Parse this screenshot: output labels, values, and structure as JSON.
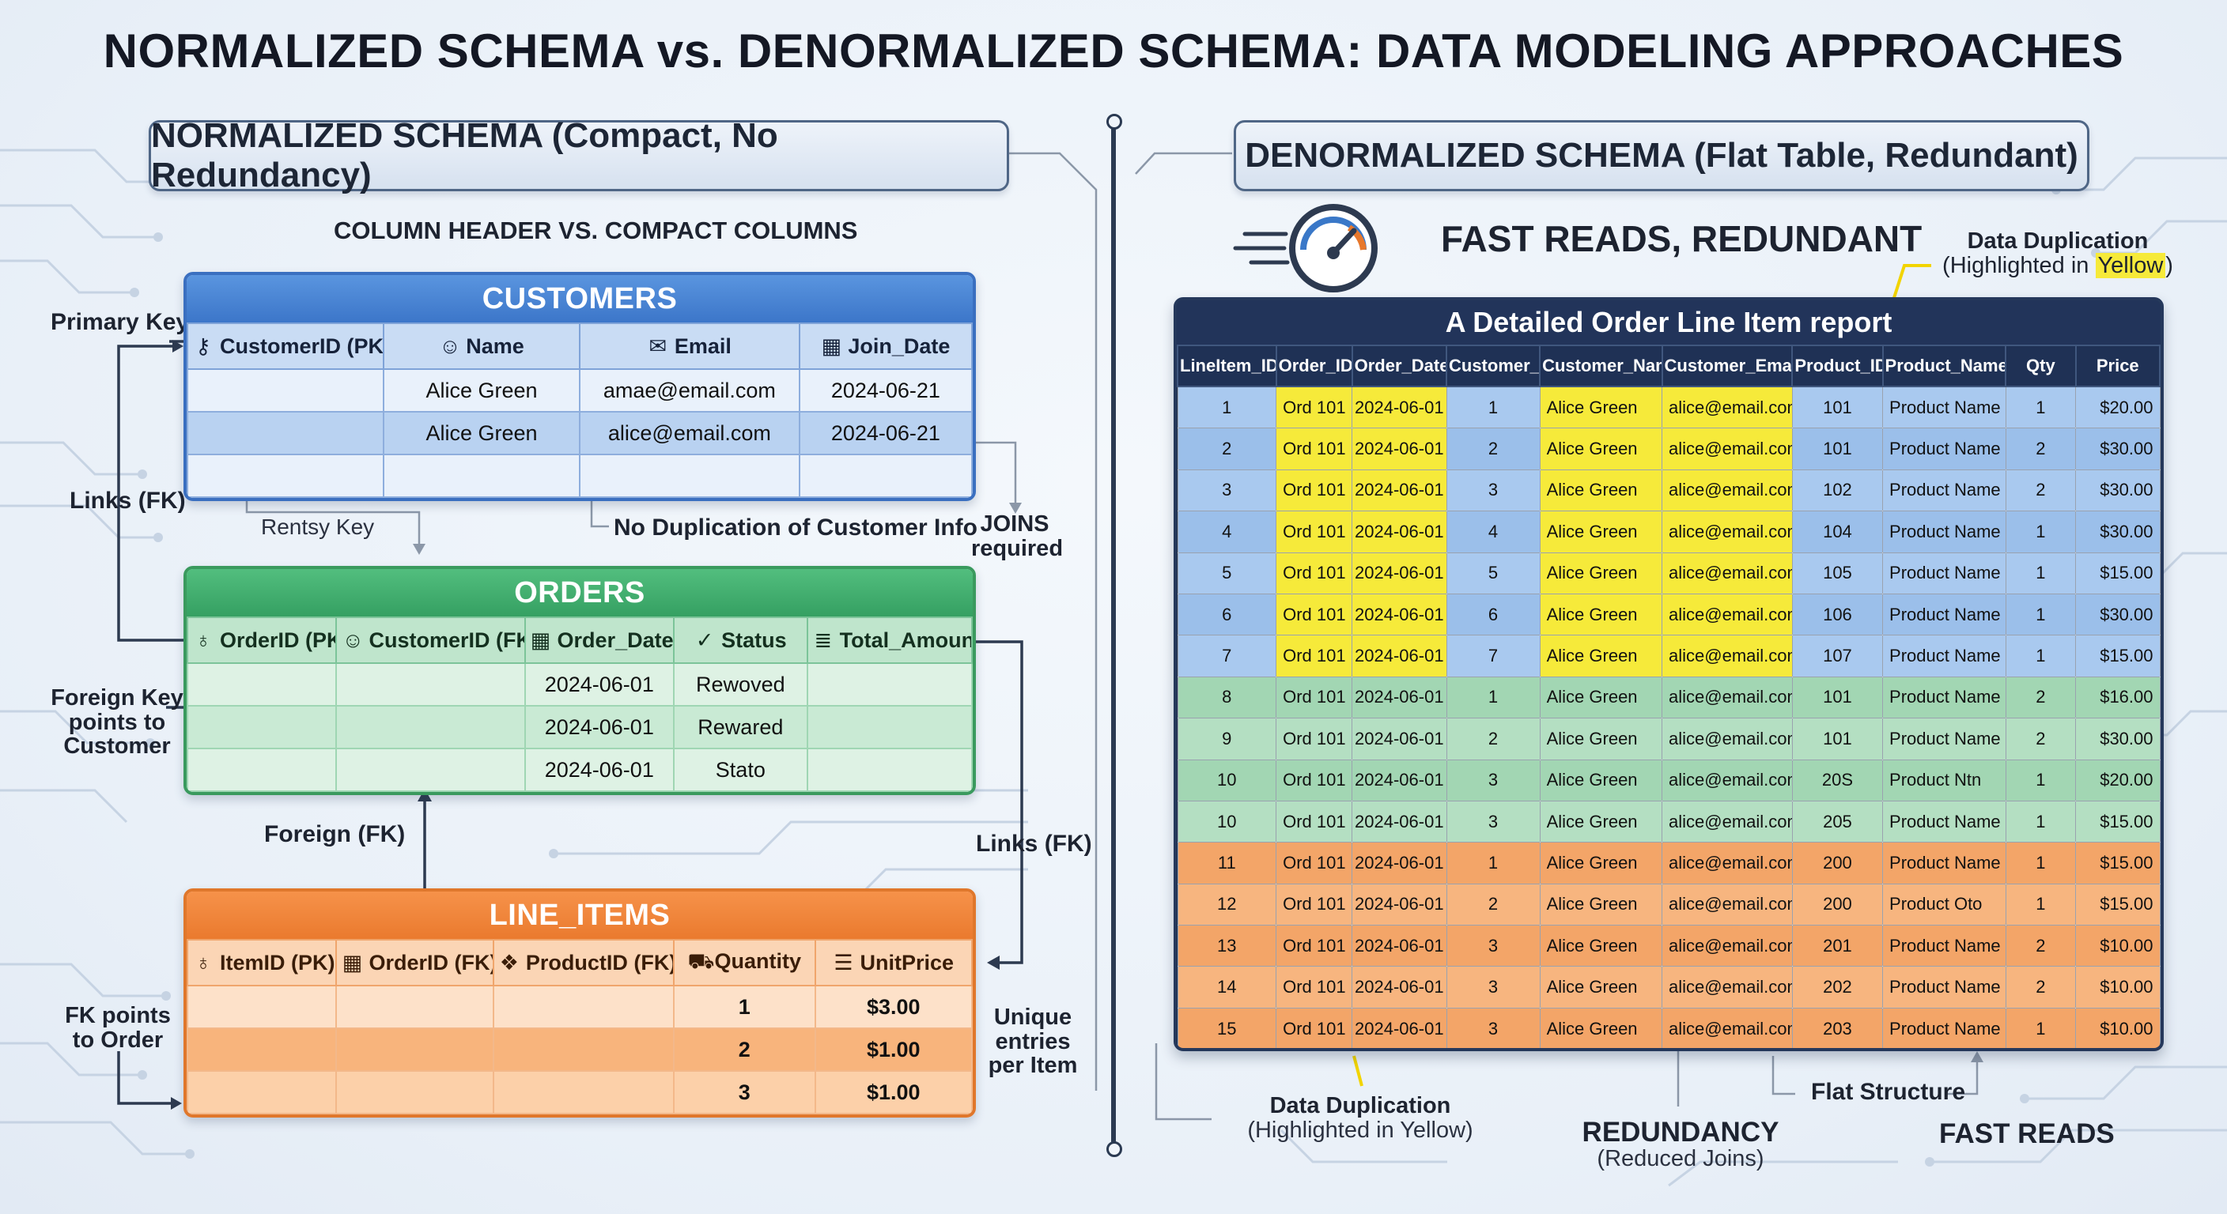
{
  "title": "NORMALIZED SCHEMA vs. DENORMALIZED SCHEMA: DATA MODELING APPROACHES",
  "normalized": {
    "section_title": "NORMALIZED SCHEMA (Compact, No Redundancy)",
    "subtitle": "COLUMN HEADER VS. COMPACT COLUMNS",
    "labels": {
      "primary_key": "Primary Key",
      "links_fk_left": "Links (FK)",
      "rentsy_key": "Rentsy Key",
      "no_duplication": "No Duplication of Customer Info",
      "joins_required": "JOINS\nrequired",
      "foreign_key_customer": "Foreign Key\npoints to\nCustomer",
      "foreign_fk": "Foreign (FK)",
      "links_fk_right": "Links (FK)",
      "fk_points_order": "FK points\nto Order",
      "unique_entries": "Unique\nentries\nper Item"
    },
    "customers": {
      "name": "CUSTOMERS",
      "columns": [
        {
          "icon": "key-icon",
          "glyph": "⚷",
          "label": "CustomerID (PK)"
        },
        {
          "icon": "person-icon",
          "glyph": "☺",
          "label": "Name"
        },
        {
          "icon": "mail-icon",
          "glyph": "✉",
          "label": "Email"
        },
        {
          "icon": "calendar-icon",
          "glyph": "▦",
          "label": "Join_Date"
        }
      ],
      "rows": [
        [
          "",
          "Alice Green",
          "amae@email.com",
          "2024-06-21"
        ],
        [
          "",
          "Alice Green",
          "alice@email.com",
          "2024-06-21"
        ],
        [
          "",
          "",
          "",
          ""
        ]
      ]
    },
    "orders": {
      "name": "ORDERS",
      "columns": [
        {
          "icon": "pin-icon",
          "glyph": "♁",
          "label": "OrderID (PK)"
        },
        {
          "icon": "person-icon",
          "glyph": "☺",
          "label": "CustomerID (FK)"
        },
        {
          "icon": "calendar-icon",
          "glyph": "▦",
          "label": "Order_Date"
        },
        {
          "icon": "check-circle-icon",
          "glyph": "✓",
          "label": "Status"
        },
        {
          "icon": "database-icon",
          "glyph": "≣",
          "label": "Total_Amount"
        }
      ],
      "rows": [
        [
          "",
          "",
          "2024-06-01",
          "Rewoved",
          ""
        ],
        [
          "",
          "",
          "2024-06-01",
          "Rewared",
          ""
        ],
        [
          "",
          "",
          "2024-06-01",
          "Stato",
          ""
        ]
      ]
    },
    "line_items": {
      "name": "LINE_ITEMS",
      "columns": [
        {
          "icon": "pin-icon",
          "glyph": "♁",
          "label": "ItemID (PK)"
        },
        {
          "icon": "calendar-icon",
          "glyph": "▦",
          "label": "OrderID (FK)"
        },
        {
          "icon": "boxes-icon",
          "glyph": "❖",
          "label": "ProductID (FK)"
        },
        {
          "icon": "cart-icon",
          "glyph": "⛟",
          "label": "Quantity"
        },
        {
          "icon": "receipt-icon",
          "glyph": "☰",
          "label": "UnitPrice"
        }
      ],
      "rows": [
        [
          "",
          "",
          "",
          "1",
          "$3.00"
        ],
        [
          "",
          "",
          "",
          "2",
          "$1.00"
        ],
        [
          "",
          "",
          "",
          "3",
          "$1.00"
        ]
      ]
    }
  },
  "denormalized": {
    "section_title": "DENORMALIZED SCHEMA (Flat Table, Redundant)",
    "subtitle": "FAST READS, REDUNDANT",
    "data_dup_top_line1": "Data Duplication",
    "data_dup_top_line2_prefix": "(Highlighted in ",
    "data_dup_top_highlight": "Yellow",
    "data_dup_top_line2_suffix": ")",
    "table_title": "A Detailed Order Line Item report",
    "columns": [
      "LineItem_ID",
      "Order_ID",
      "Order_Date",
      "Customer_ID",
      "Customer_Name",
      "Customer_Email",
      "Product_ID",
      "Product_Name",
      "Qty",
      "Price"
    ],
    "rows": [
      {
        "group": "blue",
        "highlight": true,
        "cells": [
          "1",
          "Ord 101",
          "2024-06-01",
          "1",
          "Alice Green",
          "alice@email.com",
          "101",
          "Product Name",
          "1",
          "$20.00"
        ]
      },
      {
        "group": "blue",
        "highlight": true,
        "cells": [
          "2",
          "Ord 101",
          "2024-06-01",
          "2",
          "Alice Green",
          "alice@email.com",
          "101",
          "Product Name",
          "2",
          "$30.00"
        ]
      },
      {
        "group": "blue",
        "highlight": true,
        "cells": [
          "3",
          "Ord 101",
          "2024-06-01",
          "3",
          "Alice Green",
          "alice@email.com",
          "102",
          "Product Name",
          "2",
          "$30.00"
        ]
      },
      {
        "group": "blue",
        "highlight": true,
        "cells": [
          "4",
          "Ord 101",
          "2024-06-01",
          "4",
          "Alice Green",
          "alice@email.com",
          "104",
          "Product Name",
          "1",
          "$30.00"
        ]
      },
      {
        "group": "blue",
        "highlight": true,
        "cells": [
          "5",
          "Ord 101",
          "2024-06-01",
          "5",
          "Alice Green",
          "alice@email.com",
          "105",
          "Product Name",
          "1",
          "$15.00"
        ]
      },
      {
        "group": "blue",
        "highlight": true,
        "cells": [
          "6",
          "Ord 101",
          "2024-06-01",
          "6",
          "Alice Green",
          "alice@email.com",
          "106",
          "Product Name",
          "1",
          "$30.00"
        ]
      },
      {
        "group": "blue",
        "highlight": true,
        "cells": [
          "7",
          "Ord 101",
          "2024-06-01",
          "7",
          "Alice Green",
          "alice@email.com",
          "107",
          "Product Name",
          "1",
          "$15.00"
        ]
      },
      {
        "group": "green",
        "highlight": false,
        "cells": [
          "8",
          "Ord 101",
          "2024-06-01",
          "1",
          "Alice Green",
          "alice@email.com",
          "101",
          "Product Name",
          "2",
          "$16.00"
        ]
      },
      {
        "group": "green",
        "highlight": false,
        "cells": [
          "9",
          "Ord 101",
          "2024-06-01",
          "2",
          "Alice Green",
          "alice@email.com",
          "101",
          "Product Name",
          "2",
          "$30.00"
        ]
      },
      {
        "group": "green",
        "highlight": false,
        "cells": [
          "10",
          "Ord 101",
          "2024-06-01",
          "3",
          "Alice Green",
          "alice@email.com",
          "20S",
          "Product Ntn",
          "1",
          "$20.00"
        ]
      },
      {
        "group": "green",
        "highlight": false,
        "cells": [
          "10",
          "Ord 101",
          "2024-06-01",
          "3",
          "Alice Green",
          "alice@email.com",
          "205",
          "Product Name",
          "1",
          "$15.00"
        ]
      },
      {
        "group": "orange",
        "highlight": false,
        "cells": [
          "11",
          "Ord 101",
          "2024-06-01",
          "1",
          "Alice Green",
          "alice@email.com",
          "200",
          "Product Name",
          "1",
          "$15.00"
        ]
      },
      {
        "group": "orange",
        "highlight": false,
        "cells": [
          "12",
          "Ord 101",
          "2024-06-01",
          "2",
          "Alice Green",
          "alice@email.com",
          "200",
          "Product Oto",
          "1",
          "$15.00"
        ]
      },
      {
        "group": "orange",
        "highlight": false,
        "cells": [
          "13",
          "Ord 101",
          "2024-06-01",
          "3",
          "Alice Green",
          "alice@email.com",
          "201",
          "Product Name",
          "2",
          "$10.00"
        ]
      },
      {
        "group": "orange",
        "highlight": false,
        "cells": [
          "14",
          "Ord 101",
          "2024-06-01",
          "3",
          "Alice Green",
          "alice@email.com",
          "202",
          "Product Name",
          "2",
          "$10.00"
        ]
      },
      {
        "group": "orange",
        "highlight": false,
        "cells": [
          "15",
          "Ord 101",
          "2024-06-01",
          "3",
          "Alice Green",
          "alice@email.com",
          "203",
          "Product Name",
          "1",
          "$10.00"
        ]
      }
    ],
    "bottom": {
      "data_dup_line1": "Data Duplication",
      "data_dup_line2": "(Highlighted in Yellow)",
      "redundancy": "REDUNDANCY",
      "reduced_joins": "(Reduced Joins)",
      "flat_structure": "Flat Structure",
      "fast_reads": "FAST READS"
    }
  },
  "colors": {
    "customers": "#3c76c9",
    "orders": "#35a062",
    "line_items": "#ea7a2e",
    "highlight": "#f6ea3a",
    "dark_header": "#22345a"
  }
}
